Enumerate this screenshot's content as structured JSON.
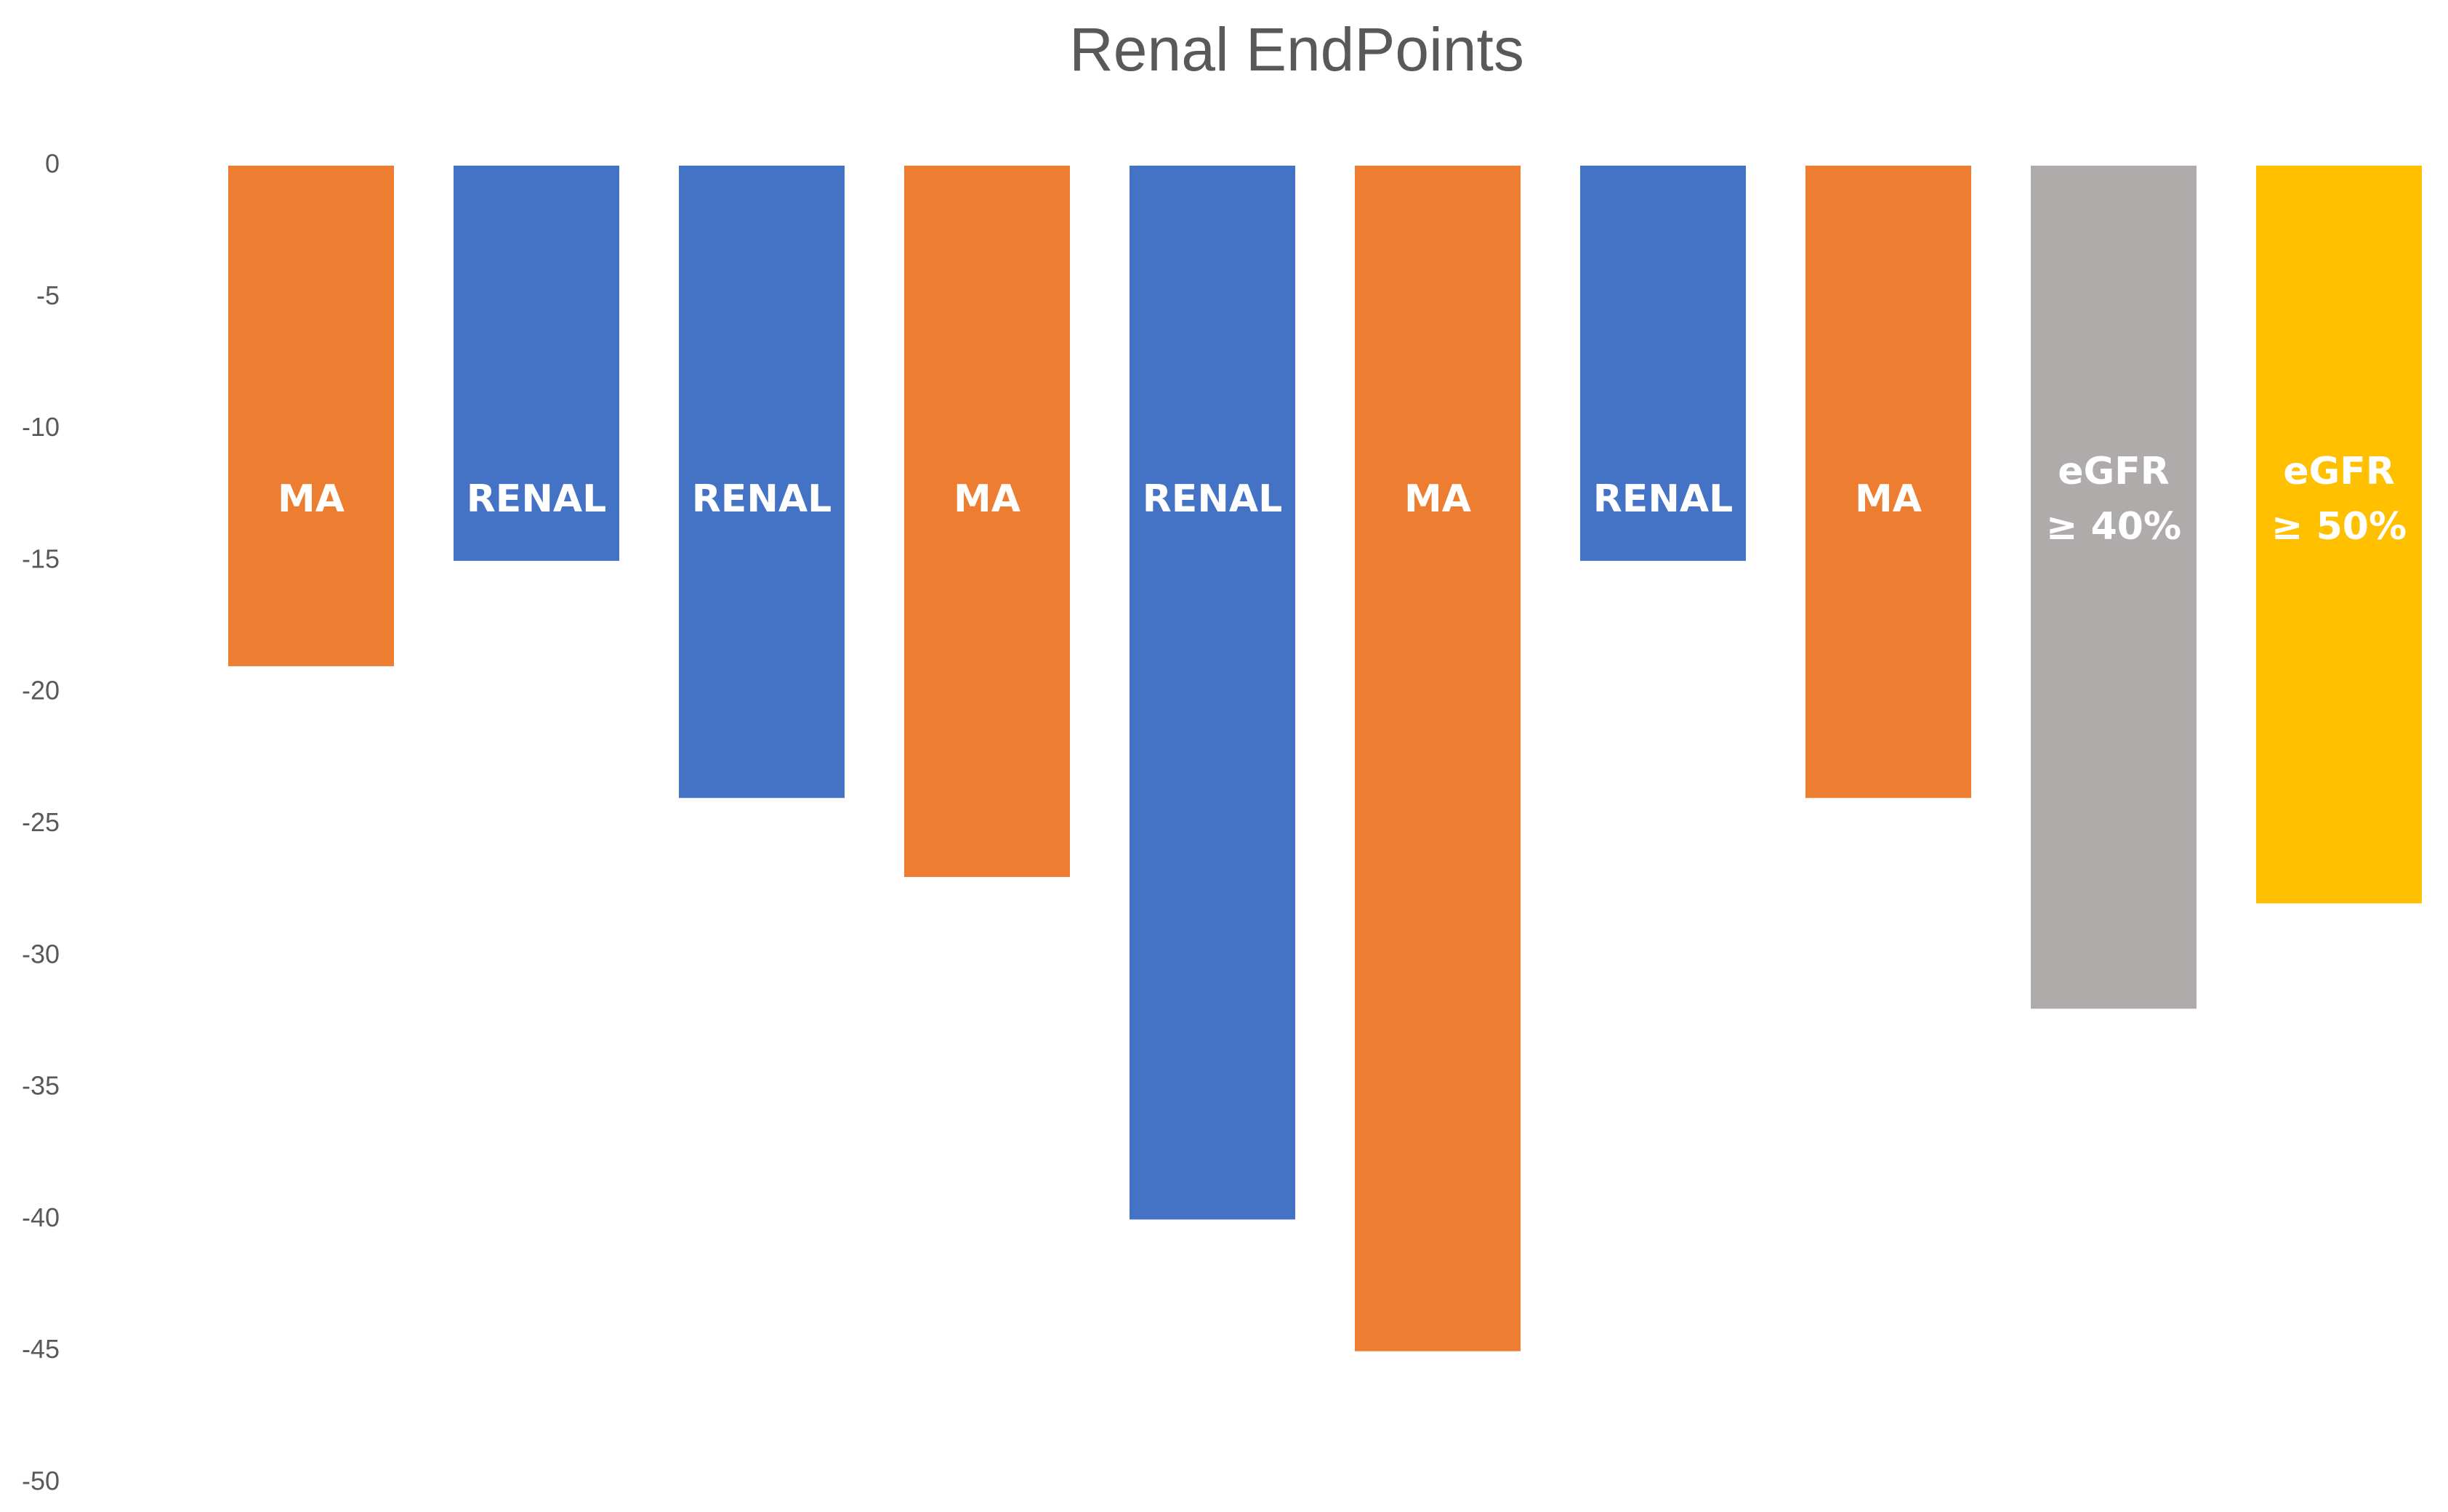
{
  "chart_data": {
    "type": "bar",
    "title": "Renal EndPoints",
    "categories": [
      "MA",
      "RENAL",
      "RENAL",
      "MA",
      "RENAL",
      "MA",
      "RENAL",
      "MA",
      "eGFR ≥ 40%",
      "eGFR ≥ 50%"
    ],
    "values": [
      -19,
      -15,
      -24,
      -27,
      -40,
      -45,
      -15,
      -24,
      -32,
      -28
    ],
    "colors": [
      "#ED7D31",
      "#4472C4",
      "#4472C4",
      "#ED7D31",
      "#4472C4",
      "#ED7D31",
      "#4472C4",
      "#ED7D31",
      "#AFABAB",
      "#FFC000"
    ],
    "ylim": [
      -50,
      0
    ],
    "yticks": [
      0,
      -5,
      -10,
      -15,
      -20,
      -25,
      -30,
      -35,
      -40,
      -45,
      -50
    ],
    "grid": false
  }
}
